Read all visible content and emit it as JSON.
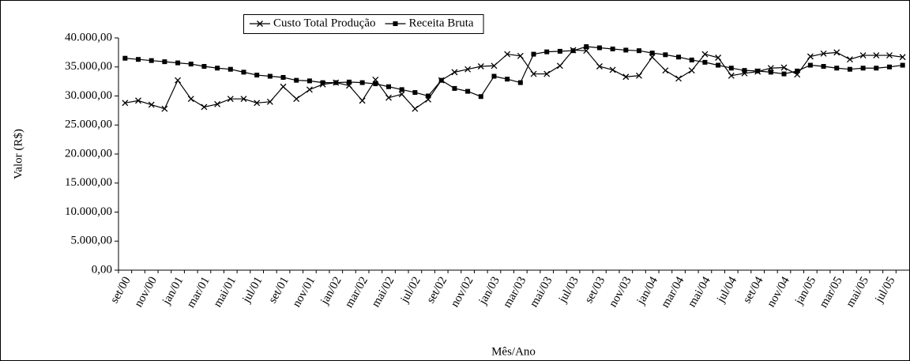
{
  "chart_data": {
    "type": "line",
    "x_label": "Mês/Ano",
    "y_label": "Valor (R$)",
    "categories": [
      "set/00",
      null,
      "nov/00",
      null,
      "jan/01",
      null,
      "mar/01",
      null,
      "mai/01",
      null,
      "jul/01",
      null,
      "set/01",
      null,
      "nov/01",
      null,
      "jan/02",
      null,
      "mar/02",
      null,
      "mai/02",
      null,
      "jul/02",
      null,
      "set/02",
      null,
      "nov/02",
      null,
      "jan/03",
      null,
      "mar/03",
      null,
      "mai/03",
      null,
      "jul/03",
      null,
      "set/03",
      null,
      "nov/03",
      null,
      "jan/04",
      null,
      "mar/04",
      null,
      "mai/04",
      null,
      "jul/04",
      null,
      "set/04",
      null,
      "nov/04",
      null,
      "jan/05",
      null,
      "mar/05",
      null,
      "mai/05",
      null,
      "jul/05",
      null
    ],
    "series": [
      {
        "name": "Custo Total Produção",
        "color": "#000000",
        "marker": "x",
        "values": [
          28800,
          29200,
          28500,
          27800,
          32700,
          29500,
          28100,
          28600,
          29500,
          29500,
          28800,
          29000,
          31600,
          29500,
          31100,
          32000,
          32300,
          31800,
          29200,
          32800,
          29700,
          30300,
          27800,
          29400,
          32700,
          34100,
          34600,
          35100,
          35200,
          37200,
          36900,
          33800,
          33800,
          35200,
          37900,
          37800,
          35100,
          34500,
          33300,
          33500,
          36700,
          34400,
          33000,
          34400,
          37200,
          36600,
          33500,
          33900,
          34200,
          34800,
          34900,
          33700,
          36800,
          37300,
          37500,
          36300,
          37000,
          37000,
          37000,
          36700
        ]
      },
      {
        "name": "Receita Bruta",
        "color": "#000000",
        "marker": "square",
        "values": [
          36500,
          36300,
          36100,
          35900,
          35700,
          35500,
          35100,
          34800,
          34600,
          34100,
          33600,
          33400,
          33200,
          32700,
          32600,
          32300,
          32300,
          32400,
          32300,
          32100,
          31600,
          31100,
          30600,
          30000,
          32700,
          31300,
          30800,
          29900,
          33400,
          32900,
          32300,
          37200,
          37600,
          37700,
          37800,
          38500,
          38300,
          38100,
          37900,
          37800,
          37400,
          37100,
          36700,
          36200,
          35800,
          35300,
          34800,
          34400,
          34300,
          34100,
          33800,
          34300,
          35300,
          35100,
          34800,
          34600,
          34800,
          34800,
          35000,
          35300
        ]
      }
    ],
    "ylim": [
      0,
      40000
    ],
    "yticks": [
      {
        "value": 0,
        "label": "0,00"
      },
      {
        "value": 5000,
        "label": "5.000,00"
      },
      {
        "value": 10000,
        "label": "10.000,00"
      },
      {
        "value": 15000,
        "label": "15.000,00"
      },
      {
        "value": 20000,
        "label": "20.000,00"
      },
      {
        "value": 25000,
        "label": "25.000,00"
      },
      {
        "value": 30000,
        "label": "30.000,00"
      },
      {
        "value": 35000,
        "label": "35.000,00"
      },
      {
        "value": 40000,
        "label": "40.000,00"
      }
    ],
    "grid": false,
    "legend": "top"
  }
}
